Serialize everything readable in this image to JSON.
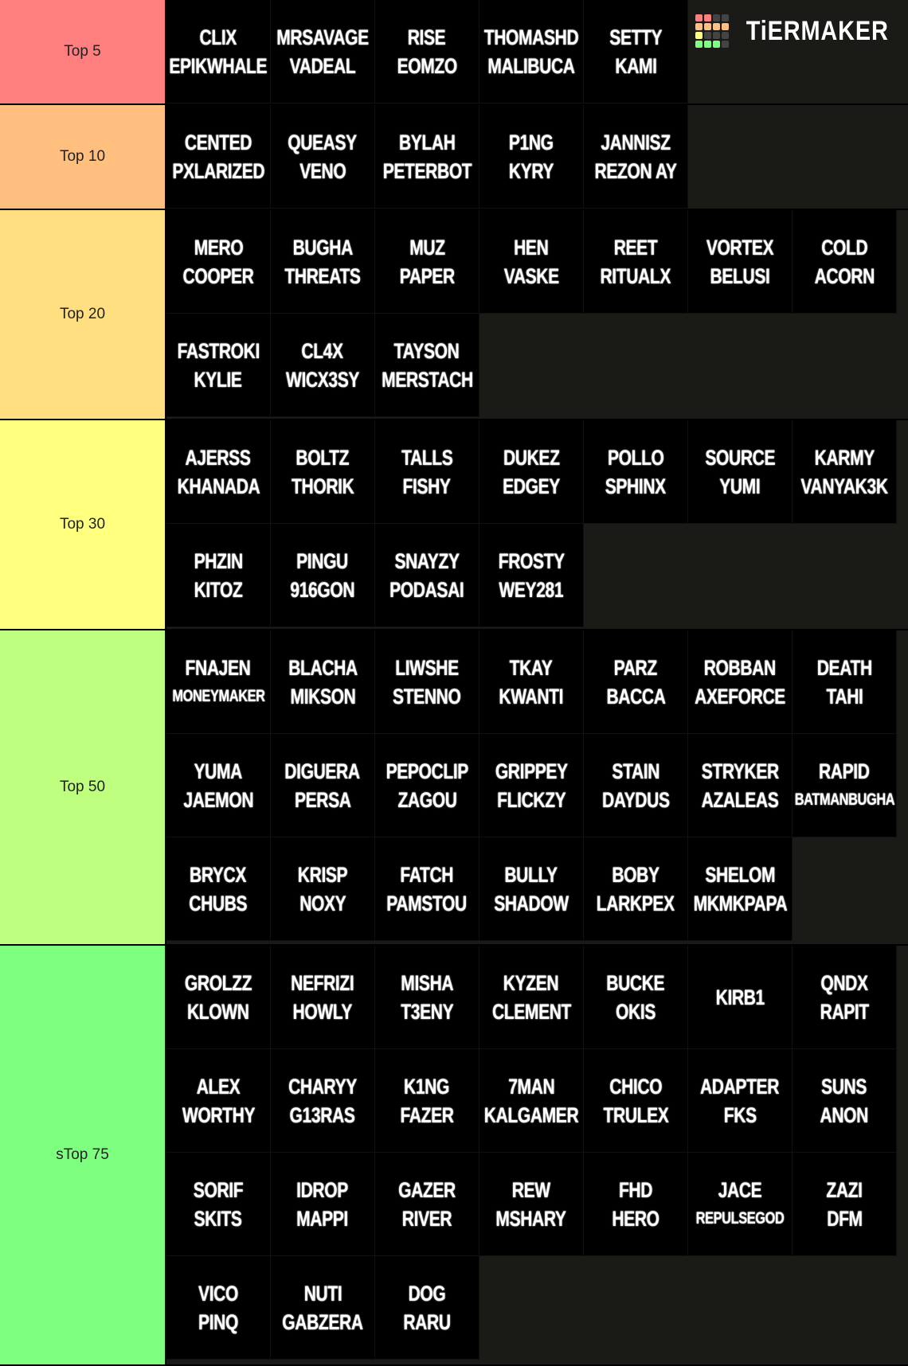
{
  "logo": {
    "text": "TiERMAKER",
    "grid_colors": [
      "#ff7f7f",
      "#ff7f7f",
      "#444",
      "#444",
      "#ffbf7f",
      "#ffbf7f",
      "#ffbf7f",
      "#ffbf7f",
      "#ffff7f",
      "#444",
      "#444",
      "#444",
      "#7fff7f",
      "#7fff7f",
      "#7fff7f",
      "#444"
    ]
  },
  "background_color": "#1a1a17",
  "tiers": [
    {
      "label": "Top 5",
      "color": "#ff7f7f",
      "items": [
        [
          "CLIX",
          "EPIKWHALE"
        ],
        [
          "MRSAVAGE",
          "VADEAL"
        ],
        [
          "RISE",
          "EOMZO"
        ],
        [
          "THOMASHD",
          "MALIBUCA"
        ],
        [
          "SETTY",
          "KAMI"
        ]
      ]
    },
    {
      "label": "Top 10",
      "color": "#ffbf7f",
      "items": [
        [
          "CENTED",
          "PXLARIZED"
        ],
        [
          "QUEASY",
          "VENO"
        ],
        [
          "BYLAH",
          "PETERBOT"
        ],
        [
          "P1NG",
          "KYRY"
        ],
        [
          "JANNISZ",
          "REZON AY"
        ]
      ]
    },
    {
      "label": "Top 20",
      "color": "#ffdf7f",
      "items": [
        [
          "MERO",
          "COOPER"
        ],
        [
          "BUGHA",
          "THREATS"
        ],
        [
          "MUZ",
          "PAPER"
        ],
        [
          "HEN",
          "VASKE"
        ],
        [
          "REET",
          "RITUALX"
        ],
        [
          "VORTEX",
          "BELUSI"
        ],
        [
          "COLD",
          "ACORN"
        ],
        [
          "FASTROKI",
          "KYLIE"
        ],
        [
          "CL4X",
          "WICX3SY"
        ],
        [
          "TAYSON",
          "MERSTACH"
        ]
      ]
    },
    {
      "label": "Top 30",
      "color": "#ffff7f",
      "items": [
        [
          "AJERSS",
          "KHANADA"
        ],
        [
          "BOLTZ",
          "THORIK"
        ],
        [
          "TALLS",
          "FISHY"
        ],
        [
          "DUKEZ",
          "EDGEY"
        ],
        [
          "POLLO",
          "SPHINX"
        ],
        [
          "SOURCE",
          "YUMI"
        ],
        [
          "KARMY",
          "VANYAK3K"
        ],
        [
          "PHZIN",
          "KITOZ"
        ],
        [
          "PINGU",
          "916GON"
        ],
        [
          "SNAYZY",
          "PODASAI"
        ],
        [
          "FROSTY",
          "WEY281"
        ]
      ]
    },
    {
      "label": "Top 50",
      "color": "#bfff7f",
      "items": [
        [
          "FNAJEN",
          "MONEYMAKER"
        ],
        [
          "BLACHA",
          "MIKSON"
        ],
        [
          "LIWSHE",
          "STENNO"
        ],
        [
          "TKAY",
          "KWANTI"
        ],
        [
          "PARZ",
          "BACCA"
        ],
        [
          "ROBBAN",
          "AXEFORCE"
        ],
        [
          "DEATH",
          "TAHI"
        ],
        [
          "YUMA",
          "JAEMON"
        ],
        [
          "DIGUERA",
          "PERSA"
        ],
        [
          "PEPOCLIP",
          "ZAGOU"
        ],
        [
          "GRIPPEY",
          "FLICKZY"
        ],
        [
          "STAIN",
          "DAYDUS"
        ],
        [
          "STRYKER",
          "AZALEAS"
        ],
        [
          "RAPID",
          "BATMANBUGHA"
        ],
        [
          "BRYCX",
          "CHUBS"
        ],
        [
          "KRISP",
          "NOXY"
        ],
        [
          "FATCH",
          "PAMSTOU"
        ],
        [
          "BULLY",
          "SHADOW"
        ],
        [
          "BOBY",
          "LARKPEX"
        ],
        [
          "SHELOM",
          "MKMKPAPA"
        ]
      ]
    },
    {
      "label": "sTop 75",
      "color": "#7fff7f",
      "items": [
        [
          "GROLZZ",
          "KLOWN"
        ],
        [
          "NEFRIZI",
          "HOWLY"
        ],
        [
          "MISHA",
          "T3ENY"
        ],
        [
          "KYZEN",
          "CLEMENT"
        ],
        [
          "BUCKE",
          "OKIS"
        ],
        [
          "KIRB1"
        ],
        [
          "QNDX",
          "RAPIT"
        ],
        [
          "ALEX",
          "WORTHY"
        ],
        [
          "CHARYY",
          "G13RAS"
        ],
        [
          "K1NG",
          "FAZER"
        ],
        [
          "7MAN",
          "KALGAMER"
        ],
        [
          "CHICO",
          "TRULEX"
        ],
        [
          "ADAPTER",
          "FKS"
        ],
        [
          "SUNS",
          "ANON"
        ],
        [
          "SORIF",
          "SKITS"
        ],
        [
          "IDROP",
          "MAPPI"
        ],
        [
          "GAZER",
          "RIVER"
        ],
        [
          "REW",
          "MSHARY"
        ],
        [
          "FHD",
          "HERO"
        ],
        [
          "JACE",
          "REPULSEGOD"
        ],
        [
          "ZAZI",
          "DFM"
        ],
        [
          "VICO",
          "PINQ"
        ],
        [
          "NUTI",
          "GABZERA"
        ],
        [
          "DOG",
          "RARU"
        ]
      ]
    }
  ]
}
